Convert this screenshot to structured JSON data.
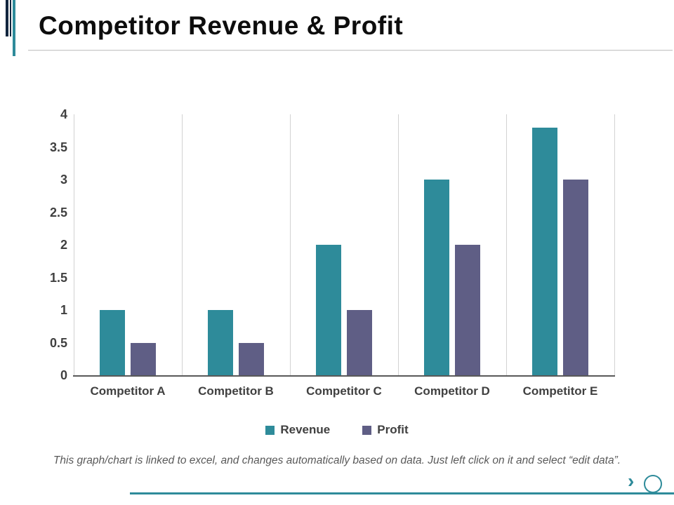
{
  "slide": {
    "title": "Competitor Revenue & Profit"
  },
  "chart_data": {
    "type": "bar",
    "title": "",
    "categories": [
      "Competitor A",
      "Competitor B",
      "Competitor C",
      "Competitor D",
      "Competitor E"
    ],
    "series": [
      {
        "name": "Revenue",
        "color": "#2e8b9a",
        "values": [
          1,
          1,
          2,
          3,
          3.8
        ]
      },
      {
        "name": "Profit",
        "color": "#5f5e85",
        "values": [
          0.5,
          0.5,
          1,
          2,
          3
        ]
      }
    ],
    "xlabel": "",
    "ylabel": "",
    "ylim": [
      0,
      4
    ],
    "ytick_step": 0.5,
    "grid": "vertical-only",
    "legend_position": "bottom"
  },
  "footer": {
    "note": "This graph/chart is linked to excel, and changes automatically based on data. Just left click on it and select “edit data”."
  },
  "nav": {
    "next_label": "›"
  },
  "colors": {
    "accent_teal": "#2e8b9a",
    "accent_slate": "#5f5e85",
    "accent_navy": "#12263f"
  }
}
